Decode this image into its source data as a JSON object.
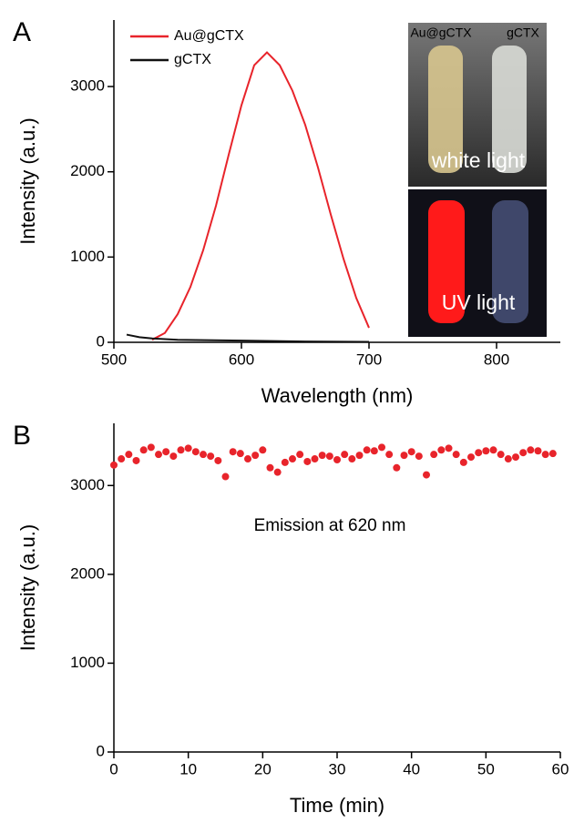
{
  "chart_data": [
    {
      "type": "line",
      "panel": "A",
      "xlabel": "Wavelength (nm)",
      "ylabel": "Intensity (a.u.)",
      "xlim": [
        500,
        850
      ],
      "xticks": [
        500,
        600,
        700,
        800
      ],
      "ylim": [
        0,
        3780
      ],
      "yticks": [
        0,
        1000,
        2000,
        3000
      ],
      "legend": "top-left",
      "series": [
        {
          "name": "Au@gCTX",
          "color": "#e8242b",
          "x": [
            530,
            540,
            550,
            560,
            570,
            580,
            590,
            600,
            610,
            620,
            630,
            640,
            650,
            660,
            670,
            680,
            690,
            700
          ],
          "values": [
            30,
            110,
            330,
            650,
            1080,
            1600,
            2200,
            2780,
            3250,
            3400,
            3250,
            2950,
            2550,
            2050,
            1500,
            980,
            520,
            170
          ]
        },
        {
          "name": "gCTX",
          "color": "#111111",
          "x": [
            510,
            520,
            530,
            550,
            600,
            650,
            700
          ],
          "values": [
            90,
            60,
            45,
            30,
            20,
            10,
            5
          ]
        }
      ],
      "inset": {
        "tube_labels": [
          "Au@gCTX",
          "gCTX"
        ],
        "top_label": "white light",
        "bottom_label": "UV light"
      }
    },
    {
      "type": "scatter",
      "panel": "B",
      "xlabel": "Time (min)",
      "ylabel": "Intensity (a.u.)",
      "annotation": "Emission at 620 nm",
      "xlim": [
        0,
        60
      ],
      "xticks": [
        0,
        10,
        20,
        30,
        40,
        50,
        60
      ],
      "ylim": [
        0,
        3700
      ],
      "yticks": [
        0,
        1000,
        2000,
        3000
      ],
      "series": [
        {
          "color": "#e8242b",
          "x": [
            0,
            1,
            2,
            3,
            4,
            5,
            6,
            7,
            8,
            9,
            10,
            11,
            12,
            13,
            14,
            15,
            16,
            17,
            18,
            19,
            20,
            21,
            22,
            23,
            24,
            25,
            26,
            27,
            28,
            29,
            30,
            31,
            32,
            33,
            34,
            35,
            36,
            37,
            38,
            39,
            40,
            41,
            42,
            43,
            44,
            45,
            46,
            47,
            48,
            49,
            50,
            51,
            52,
            53,
            54,
            55,
            56,
            57,
            58,
            59
          ],
          "values": [
            3230,
            3300,
            3350,
            3280,
            3400,
            3430,
            3350,
            3380,
            3330,
            3400,
            3420,
            3380,
            3350,
            3330,
            3280,
            3100,
            3380,
            3360,
            3300,
            3340,
            3400,
            3200,
            3150,
            3260,
            3300,
            3350,
            3270,
            3300,
            3340,
            3330,
            3290,
            3350,
            3300,
            3340,
            3400,
            3390,
            3430,
            3350,
            3200,
            3340,
            3380,
            3330,
            3120,
            3350,
            3400,
            3420,
            3350,
            3260,
            3320,
            3370,
            3390,
            3400,
            3350,
            3300,
            3320,
            3370,
            3400,
            3390,
            3350,
            3360
          ]
        }
      ]
    }
  ]
}
